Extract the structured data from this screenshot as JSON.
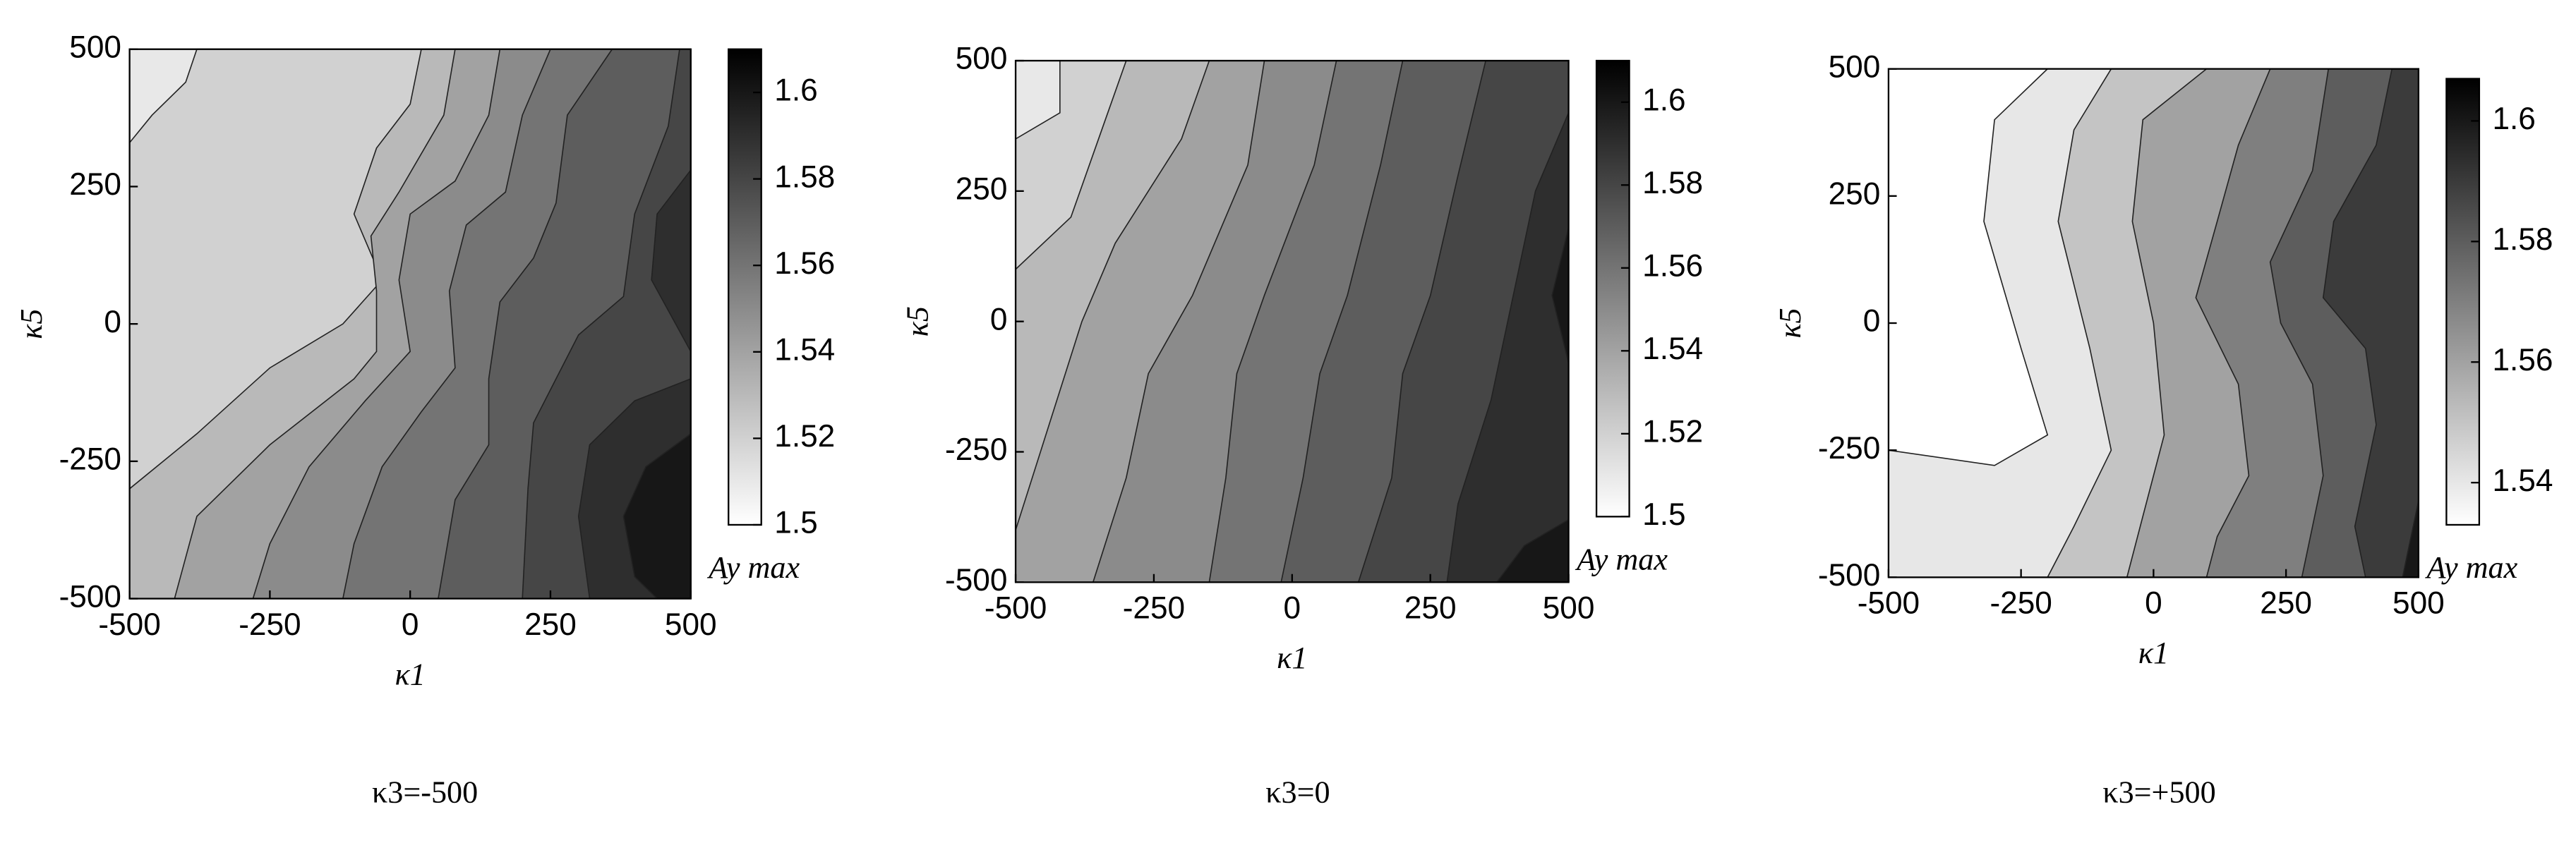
{
  "chart_data": [
    {
      "type": "contour",
      "title": "κ3=-500",
      "x_label": "κ1",
      "y_label": "κ5",
      "colorbar_label": "Ay max",
      "xlim": [
        -500,
        500
      ],
      "xticks": [
        -500,
        -250,
        0,
        250,
        500
      ],
      "ylim": [
        -500,
        500
      ],
      "yticks": [
        -500,
        -250,
        0,
        250,
        500
      ],
      "clim": [
        1.5,
        1.61
      ],
      "cticks": [
        1.5,
        1.52,
        1.54,
        1.56,
        1.58,
        1.6
      ],
      "levels": [
        1.51,
        1.52,
        1.53,
        1.54,
        1.55,
        1.56,
        1.57,
        1.58,
        1.59,
        1.6
      ]
    },
    {
      "type": "contour",
      "title": "κ3=0",
      "x_label": "κ1",
      "y_label": "κ5",
      "colorbar_label": "Ay max",
      "xlim": [
        -500,
        500
      ],
      "xticks": [
        -500,
        -250,
        0,
        250,
        500
      ],
      "ylim": [
        -500,
        500
      ],
      "yticks": [
        -500,
        -250,
        0,
        250,
        500
      ],
      "clim": [
        1.5,
        1.61
      ],
      "cticks": [
        1.5,
        1.52,
        1.54,
        1.56,
        1.58,
        1.6
      ],
      "levels": [
        1.51,
        1.52,
        1.53,
        1.54,
        1.55,
        1.56,
        1.57,
        1.58,
        1.59,
        1.6
      ]
    },
    {
      "type": "contour",
      "title": "κ3=+500",
      "x_label": "κ1",
      "y_label": "κ5",
      "colorbar_label": "Ay max",
      "xlim": [
        -500,
        500
      ],
      "xticks": [
        -500,
        -250,
        0,
        250,
        500
      ],
      "ylim": [
        -500,
        500
      ],
      "yticks": [
        -500,
        -250,
        0,
        250,
        500
      ],
      "clim": [
        1.533,
        1.607
      ],
      "cticks": [
        1.54,
        1.56,
        1.58,
        1.6
      ],
      "levels": [
        1.53,
        1.54,
        1.55,
        1.56,
        1.57,
        1.58,
        1.59,
        1.6
      ]
    }
  ]
}
